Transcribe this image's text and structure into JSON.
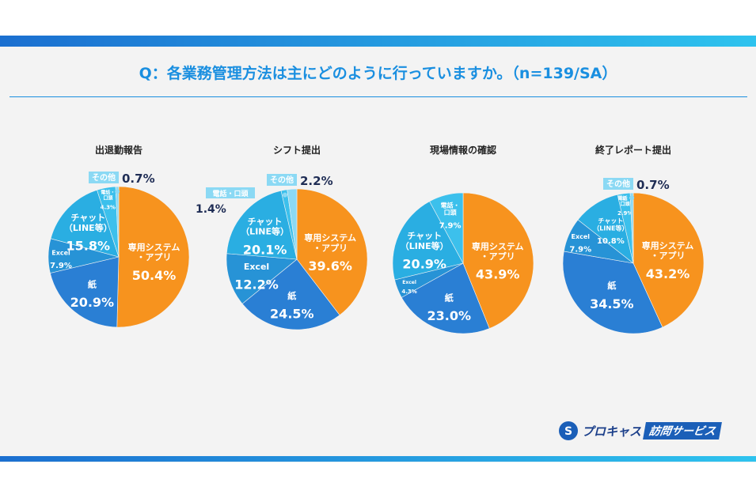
{
  "title": "Q：各業務管理方法は主にどのように行っていますか。（n=139/SA）",
  "logo": {
    "text1": "プロキャス",
    "text2": "訪問サービス"
  },
  "colors": {
    "専用システム・アプリ": "#f7931e",
    "紙": "#2a7fd4",
    "Excel": "#2793d6",
    "チャット（LINE等）": "#2aaee2",
    "電話・口頭": "#3cc0ec",
    "その他": "#8bd9f4"
  },
  "chart_data": [
    {
      "type": "pie",
      "title": "出退勤報告",
      "labels": [
        "専用システム・アプリ",
        "紙",
        "Excel",
        "チャット（LINE等）",
        "電話・口頭",
        "その他"
      ],
      "values": [
        50.4,
        20.9,
        7.9,
        15.8,
        4.3,
        0.7
      ]
    },
    {
      "type": "pie",
      "title": "シフト提出",
      "labels": [
        "専用システム・アプリ",
        "紙",
        "Excel",
        "チャット（LINE等）",
        "電話・口頭",
        "その他"
      ],
      "values": [
        39.6,
        24.5,
        12.2,
        20.1,
        1.4,
        2.2
      ]
    },
    {
      "type": "pie",
      "title": "現場情報の確認",
      "labels": [
        "専用システム・アプリ",
        "紙",
        "Excel",
        "チャット（LINE等）",
        "電話・口頭"
      ],
      "values": [
        43.9,
        23.0,
        4.3,
        20.9,
        7.9
      ]
    },
    {
      "type": "pie",
      "title": "終了レポート提出",
      "labels": [
        "専用システム・アプリ",
        "紙",
        "Excel",
        "チャット（LINE等）",
        "電話・口頭",
        "その他"
      ],
      "values": [
        43.2,
        34.5,
        7.9,
        10.8,
        2.9,
        0.7
      ]
    }
  ]
}
